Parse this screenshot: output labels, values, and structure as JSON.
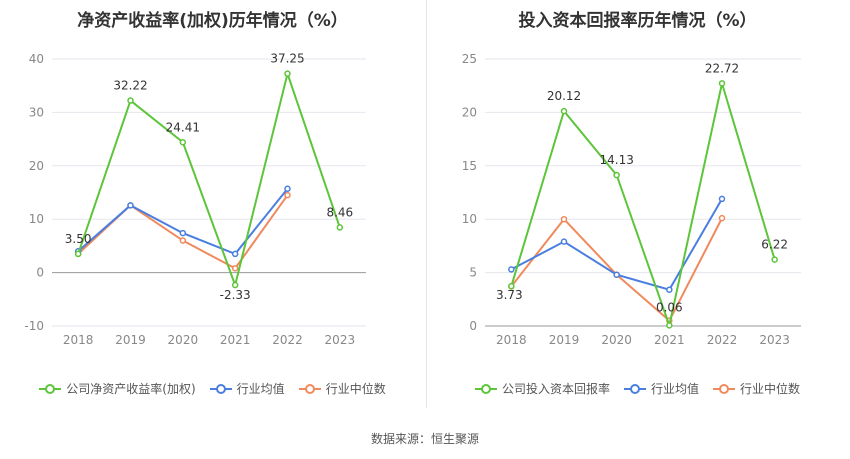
{
  "source": "数据来源：恒生聚源",
  "chart_data": [
    {
      "type": "line",
      "title": "净资产收益率(加权)历年情况（%）",
      "categories": [
        "2018",
        "2019",
        "2020",
        "2021",
        "2022",
        "2023"
      ],
      "ylim": [
        -10,
        40
      ],
      "yticks": [
        -10,
        0,
        10,
        20,
        30,
        40
      ],
      "grid": true,
      "legend_position": "bottom",
      "series": [
        {
          "name": "公司净资产收益率(加权)",
          "color": "#5cc53a",
          "values": [
            3.5,
            32.22,
            24.41,
            -2.33,
            37.25,
            8.46
          ],
          "labels": [
            "3.50",
            "32.22",
            "24.41",
            "-2.33",
            "37.25",
            "8.46"
          ]
        },
        {
          "name": "行业均值",
          "color": "#4a7fe0",
          "values": [
            4.0,
            12.6,
            7.4,
            3.5,
            15.7,
            null
          ]
        },
        {
          "name": "行业中位数",
          "color": "#f08a5d",
          "values": [
            3.5,
            12.6,
            6.0,
            0.8,
            14.5,
            null
          ]
        }
      ]
    },
    {
      "type": "line",
      "title": "投入资本回报率历年情况（%）",
      "categories": [
        "2018",
        "2019",
        "2020",
        "2021",
        "2022",
        "2023"
      ],
      "ylim": [
        0,
        25
      ],
      "yticks": [
        0,
        5,
        10,
        15,
        20,
        25
      ],
      "grid": true,
      "legend_position": "bottom",
      "series": [
        {
          "name": "公司投入资本回报率",
          "color": "#5cc53a",
          "values": [
            3.73,
            20.12,
            14.13,
            0.06,
            22.72,
            6.22
          ],
          "labels": [
            "3.73",
            "20.12",
            "14.13",
            "0.06",
            "22.72",
            "6.22"
          ]
        },
        {
          "name": "行业均值",
          "color": "#4a7fe0",
          "values": [
            5.3,
            7.9,
            4.8,
            3.4,
            11.9,
            null
          ]
        },
        {
          "name": "行业中位数",
          "color": "#f08a5d",
          "values": [
            3.7,
            10.0,
            4.8,
            0.5,
            10.1,
            null
          ]
        }
      ]
    }
  ]
}
